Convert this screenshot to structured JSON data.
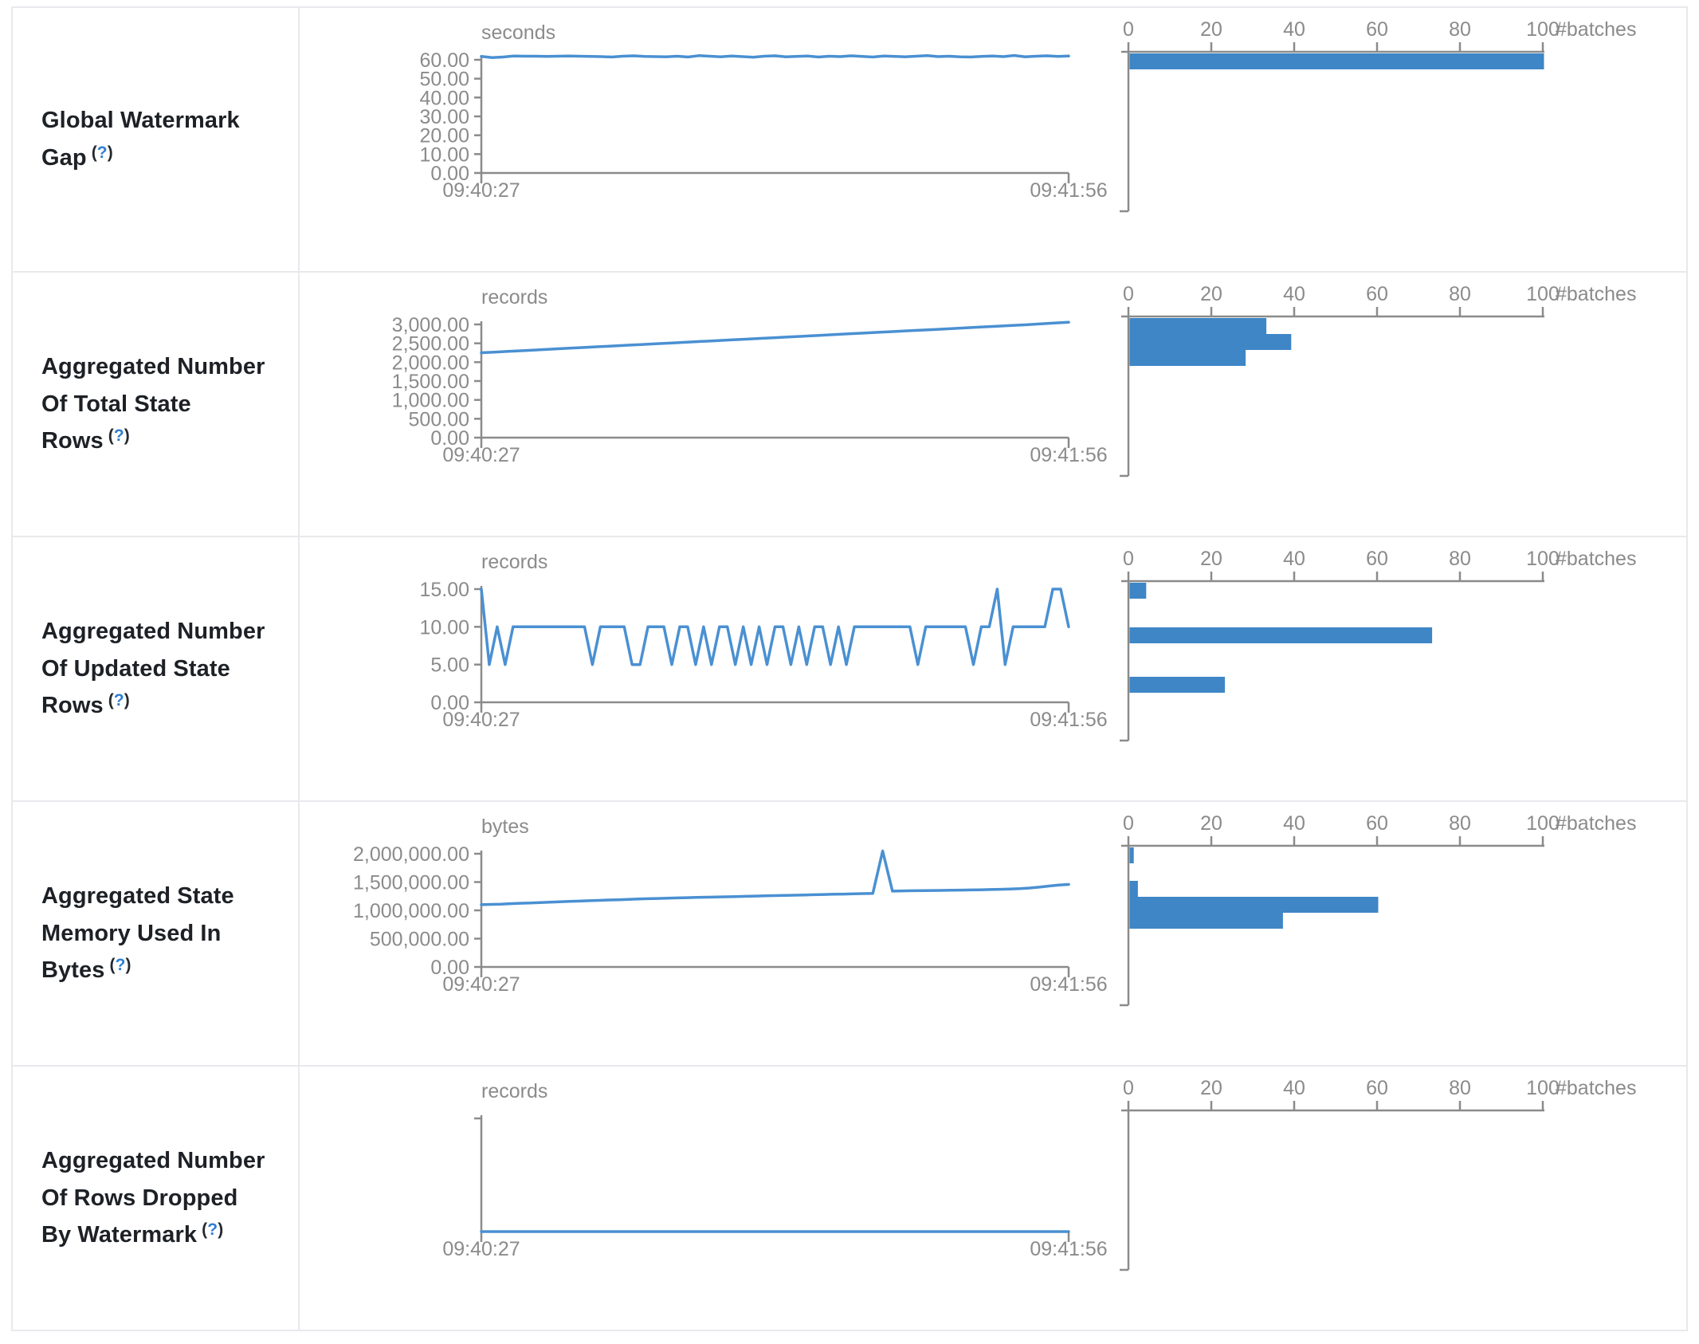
{
  "colors": {
    "series_line": "#4a90d2",
    "histogram_bar": "#3e86c6",
    "axis_gray": "#8b8b8b",
    "label_dark": "#1d2126",
    "help_blue": "#2e7fd2",
    "border_gray": "#e7e9ec"
  },
  "help": {
    "open": "(",
    "q": "?",
    "close": ")"
  },
  "time_axis": {
    "start": "09:40:27",
    "end": "09:41:56"
  },
  "batch_axis": {
    "tick_values": [
      0,
      20,
      40,
      60,
      80,
      100
    ],
    "unit_label": "#batches",
    "max": 100
  },
  "rows": [
    {
      "label": "Global Watermark Gap",
      "unit": "seconds",
      "y_ticks": [
        "60.00",
        "50.00",
        "40.00",
        "30.00",
        "20.00",
        "10.00",
        "0.00"
      ],
      "y_max": 60,
      "timeline_values": [
        61.8,
        61.2,
        61.5,
        62,
        61.9,
        61.9,
        61.8,
        61.9,
        62,
        61.9,
        61.8,
        61.7,
        61.5,
        61.9,
        62.1,
        61.8,
        61.7,
        61.6,
        61.9,
        61.5,
        62.2,
        61.9,
        61.6,
        62,
        61.7,
        61.4,
        61.9,
        62.1,
        61.6,
        61.8,
        62,
        61.5,
        61.9,
        61.7,
        62.1,
        61.8,
        61.5,
        62,
        61.8,
        61.6,
        61.9,
        62.2,
        61.7,
        61.9,
        61.6,
        61.5,
        61.8,
        62,
        61.7,
        62.3,
        61.6,
        61.9,
        62.1,
        61.8,
        62
      ],
      "histogram_bins": [
        {
          "at": "~61 seconds",
          "count": 100,
          "offset": 2
        }
      ]
    },
    {
      "label": "Aggregated Number Of Total State Rows",
      "unit": "records",
      "y_ticks": [
        "3,000.00",
        "2,500.00",
        "2,000.00",
        "1,500.00",
        "1,000.00",
        "500.00",
        "0.00"
      ],
      "y_max": 3000,
      "timeline_values": [
        2250,
        2270,
        2290,
        2310,
        2330,
        2350,
        2370,
        2390,
        2410,
        2430,
        2450,
        2470,
        2490,
        2510,
        2530,
        2550,
        2570,
        2590,
        2610,
        2630,
        2650,
        2670,
        2690,
        2710,
        2730,
        2750,
        2770,
        2790,
        2810,
        2830,
        2850,
        2870,
        2890,
        2910,
        2930,
        2950,
        2970,
        2990,
        3012,
        3035,
        3060
      ],
      "histogram_bins": [
        {
          "at": "~3000 records",
          "count": 33,
          "offset": 2
        },
        {
          "at": "~2800 records",
          "count": 39,
          "offset": 22
        },
        {
          "at": "~2500 records",
          "count": 28,
          "offset": 42
        }
      ]
    },
    {
      "label": "Aggregated Number Of Updated State Rows",
      "unit": "records",
      "y_ticks": [
        "15.00",
        "10.00",
        "5.00",
        "0.00"
      ],
      "y_max": 15,
      "timeline_values": [
        15,
        5,
        10,
        5,
        10,
        10,
        10,
        10,
        10,
        10,
        10,
        10,
        10,
        10,
        5,
        10,
        10,
        10,
        10,
        5,
        5,
        10,
        10,
        10,
        5,
        10,
        10,
        5,
        10,
        5,
        10,
        10,
        5,
        10,
        5,
        10,
        5,
        10,
        10,
        5,
        10,
        5,
        10,
        10,
        5,
        10,
        5,
        10,
        10,
        10,
        10,
        10,
        10,
        10,
        10,
        5,
        10,
        10,
        10,
        10,
        10,
        10,
        5,
        10,
        10,
        15,
        5,
        10,
        10,
        10,
        10,
        10,
        15,
        15,
        10
      ],
      "histogram_bins": [
        {
          "at": "15 records",
          "count": 4,
          "offset": 2
        },
        {
          "at": "10 records",
          "count": 73,
          "offset": 58
        },
        {
          "at": "5 records",
          "count": 23,
          "offset": 120
        }
      ]
    },
    {
      "label": "Aggregated State Memory Used In Bytes",
      "unit": "bytes",
      "y_ticks": [
        "2,000,000.00",
        "1,500,000.00",
        "1,000,000.00",
        "500,000.00",
        "0.00"
      ],
      "y_max": 2000000,
      "timeline_values": [
        1100000,
        1105000,
        1110000,
        1118000,
        1125000,
        1130000,
        1138000,
        1145000,
        1152000,
        1158000,
        1163000,
        1170000,
        1176000,
        1183000,
        1188000,
        1194000,
        1200000,
        1205000,
        1210000,
        1215000,
        1220000,
        1224000,
        1228000,
        1232000,
        1236000,
        1240000,
        1244000,
        1248000,
        1252000,
        1256000,
        1260000,
        1264000,
        1268000,
        1272000,
        1276000,
        1280000,
        1284000,
        1288000,
        1292000,
        1296000,
        1300000,
        2050000,
        1340000,
        1344000,
        1346000,
        1348000,
        1350000,
        1352000,
        1355000,
        1358000,
        1361000,
        1364000,
        1368000,
        1372000,
        1377000,
        1383000,
        1395000,
        1410000,
        1430000,
        1448000,
        1458000
      ],
      "histogram_bins": [
        {
          "at": "~2,000,000 bytes",
          "count": 1,
          "offset": 2
        },
        {
          "at": "~1,450,000 bytes",
          "count": 2,
          "offset": 44
        },
        {
          "at": "~1,350,000 bytes",
          "count": 60,
          "offset": 64
        },
        {
          "at": "~1,250,000 bytes",
          "count": 37,
          "offset": 84
        }
      ]
    },
    {
      "label": "Aggregated Number Of Rows Dropped By Watermark",
      "unit": "records",
      "y_ticks": [],
      "y_max": 1,
      "timeline_values": [
        0,
        0
      ],
      "histogram_bins": []
    }
  ]
}
